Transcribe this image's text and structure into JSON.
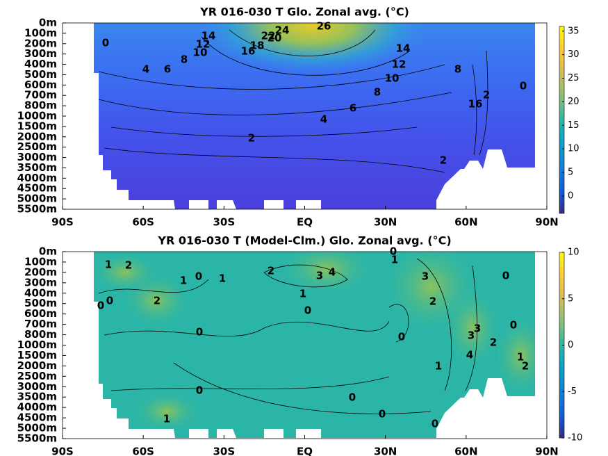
{
  "chart_data": [
    {
      "type": "contour",
      "title": "YR 016-030 T Glo. Zonal avg. (°C)",
      "xlim": [
        -90,
        90
      ],
      "xticks": [
        {
          "value": -90,
          "label": "90S"
        },
        {
          "value": -60,
          "label": "60S"
        },
        {
          "value": -30,
          "label": "30S"
        },
        {
          "value": 0,
          "label": "EQ"
        },
        {
          "value": 30,
          "label": "30N"
        },
        {
          "value": 60,
          "label": "60N"
        },
        {
          "value": 90,
          "label": "90N"
        }
      ],
      "ylim": [
        0,
        5500
      ],
      "yreverse": true,
      "yticks": [
        {
          "value": 0,
          "label": "0m"
        },
        {
          "value": 100,
          "label": "100m"
        },
        {
          "value": 200,
          "label": "200m"
        },
        {
          "value": 300,
          "label": "300m"
        },
        {
          "value": 400,
          "label": "400m"
        },
        {
          "value": 500,
          "label": "500m"
        },
        {
          "value": 600,
          "label": "600m"
        },
        {
          "value": 700,
          "label": "700m"
        },
        {
          "value": 800,
          "label": "800m"
        },
        {
          "value": 1000,
          "label": "1000m"
        },
        {
          "value": 1500,
          "label": "1500m"
        },
        {
          "value": 2000,
          "label": "2000m"
        },
        {
          "value": 2500,
          "label": "2500m"
        },
        {
          "value": 3000,
          "label": "3000m"
        },
        {
          "value": 3500,
          "label": "3500m"
        },
        {
          "value": 4000,
          "label": "4000m"
        },
        {
          "value": 4500,
          "label": "4500m"
        },
        {
          "value": 5000,
          "label": "5000m"
        },
        {
          "value": 5500,
          "label": "5500m"
        }
      ],
      "colormap": "parula",
      "clim": [
        -3.7,
        36
      ],
      "cticks": [
        0,
        5,
        10,
        15,
        20,
        25,
        30,
        35
      ],
      "contour_labels": [
        0,
        26,
        24,
        22,
        20,
        18,
        16,
        14,
        12,
        10,
        8,
        6,
        4,
        14,
        12,
        10,
        8,
        6,
        4,
        2,
        2,
        8,
        16,
        2,
        0
      ]
    },
    {
      "type": "contour",
      "title": "YR 016-030 T (Model-Clm.) Glo. Zonal avg. (°C)",
      "xlim": [
        -90,
        90
      ],
      "xticks": [
        {
          "value": -90,
          "label": "90S"
        },
        {
          "value": -60,
          "label": "60S"
        },
        {
          "value": -30,
          "label": "30S"
        },
        {
          "value": 0,
          "label": "EQ"
        },
        {
          "value": 30,
          "label": "30N"
        },
        {
          "value": 60,
          "label": "60N"
        },
        {
          "value": 90,
          "label": "90N"
        }
      ],
      "ylim": [
        0,
        5500
      ],
      "yreverse": true,
      "yticks": [
        {
          "value": 0,
          "label": "0m"
        },
        {
          "value": 100,
          "label": "100m"
        },
        {
          "value": 200,
          "label": "200m"
        },
        {
          "value": 300,
          "label": "300m"
        },
        {
          "value": 400,
          "label": "400m"
        },
        {
          "value": 500,
          "label": "500m"
        },
        {
          "value": 600,
          "label": "600m"
        },
        {
          "value": 700,
          "label": "700m"
        },
        {
          "value": 800,
          "label": "800m"
        },
        {
          "value": 1000,
          "label": "1000m"
        },
        {
          "value": 1500,
          "label": "1500m"
        },
        {
          "value": 2000,
          "label": "2000m"
        },
        {
          "value": 2500,
          "label": "2500m"
        },
        {
          "value": 3000,
          "label": "3000m"
        },
        {
          "value": 3500,
          "label": "3500m"
        },
        {
          "value": 4000,
          "label": "4000m"
        },
        {
          "value": 4500,
          "label": "4500m"
        },
        {
          "value": 5000,
          "label": "5000m"
        },
        {
          "value": 5500,
          "label": "5500m"
        }
      ],
      "colormap": "parula",
      "clim": [
        -10,
        10
      ],
      "cticks": [
        -10,
        -5,
        0,
        5,
        10
      ],
      "contour_labels": [
        1,
        2,
        1,
        0,
        1,
        2,
        3,
        4,
        1,
        0,
        0,
        1,
        3,
        2,
        0,
        0,
        0,
        2,
        0,
        0,
        0,
        3,
        3,
        2,
        4,
        1,
        1,
        2,
        0,
        0,
        0,
        0,
        1
      ]
    }
  ]
}
